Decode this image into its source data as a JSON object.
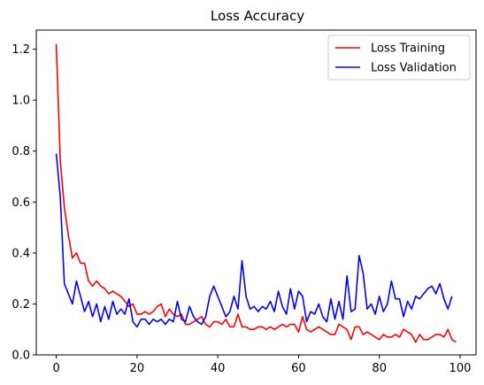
{
  "chart_data": {
    "type": "line",
    "title": "Loss Accuracy",
    "xlabel": "",
    "ylabel": "",
    "xlim": [
      -4.95,
      103.95
    ],
    "ylim": [
      0.0,
      1.275
    ],
    "xticks": [
      0,
      20,
      40,
      60,
      80,
      100
    ],
    "yticks": [
      0.0,
      0.2,
      0.4,
      0.6,
      0.8,
      1.0,
      1.2
    ],
    "xtick_labels": [
      "0",
      "20",
      "40",
      "60",
      "80",
      "100"
    ],
    "ytick_labels": [
      "0.0",
      "0.2",
      "0.4",
      "0.6",
      "0.8",
      "1.0",
      "1.2"
    ],
    "grid": false,
    "legend_position": "top-right",
    "series": [
      {
        "name": "Loss Training",
        "color": "#ff0000",
        "values": [
          1.22,
          0.76,
          0.58,
          0.47,
          0.38,
          0.4,
          0.36,
          0.36,
          0.29,
          0.27,
          0.29,
          0.27,
          0.26,
          0.24,
          0.25,
          0.24,
          0.23,
          0.21,
          0.19,
          0.2,
          0.16,
          0.16,
          0.17,
          0.16,
          0.17,
          0.19,
          0.2,
          0.15,
          0.18,
          0.16,
          0.15,
          0.16,
          0.12,
          0.12,
          0.13,
          0.14,
          0.15,
          0.12,
          0.11,
          0.13,
          0.13,
          0.12,
          0.14,
          0.11,
          0.11,
          0.16,
          0.11,
          0.11,
          0.1,
          0.1,
          0.11,
          0.11,
          0.1,
          0.11,
          0.1,
          0.11,
          0.12,
          0.11,
          0.12,
          0.12,
          0.09,
          0.15,
          0.1,
          0.09,
          0.1,
          0.11,
          0.1,
          0.09,
          0.08,
          0.08,
          0.12,
          0.11,
          0.1,
          0.06,
          0.11,
          0.11,
          0.08,
          0.09,
          0.08,
          0.07,
          0.06,
          0.08,
          0.07,
          0.07,
          0.08,
          0.07,
          0.1,
          0.09,
          0.08,
          0.05,
          0.08,
          0.06,
          0.06,
          0.07,
          0.08,
          0.08,
          0.07,
          0.1,
          0.06,
          0.05
        ]
      },
      {
        "name": "Loss Validation",
        "color": "#0000ff",
        "values": [
          0.79,
          0.62,
          0.28,
          0.24,
          0.2,
          0.29,
          0.23,
          0.17,
          0.21,
          0.15,
          0.2,
          0.13,
          0.19,
          0.14,
          0.21,
          0.16,
          0.18,
          0.16,
          0.22,
          0.13,
          0.11,
          0.14,
          0.14,
          0.12,
          0.14,
          0.13,
          0.14,
          0.12,
          0.14,
          0.13,
          0.21,
          0.14,
          0.13,
          0.19,
          0.15,
          0.13,
          0.12,
          0.15,
          0.23,
          0.27,
          0.23,
          0.19,
          0.15,
          0.17,
          0.23,
          0.18,
          0.37,
          0.23,
          0.18,
          0.19,
          0.17,
          0.19,
          0.18,
          0.21,
          0.17,
          0.25,
          0.19,
          0.16,
          0.26,
          0.18,
          0.25,
          0.23,
          0.13,
          0.17,
          0.16,
          0.2,
          0.15,
          0.13,
          0.22,
          0.14,
          0.21,
          0.14,
          0.31,
          0.17,
          0.18,
          0.39,
          0.32,
          0.18,
          0.2,
          0.16,
          0.23,
          0.17,
          0.2,
          0.29,
          0.22,
          0.22,
          0.15,
          0.21,
          0.18,
          0.23,
          0.22,
          0.24,
          0.26,
          0.27,
          0.24,
          0.28,
          0.22,
          0.18,
          0.23
        ]
      }
    ]
  }
}
